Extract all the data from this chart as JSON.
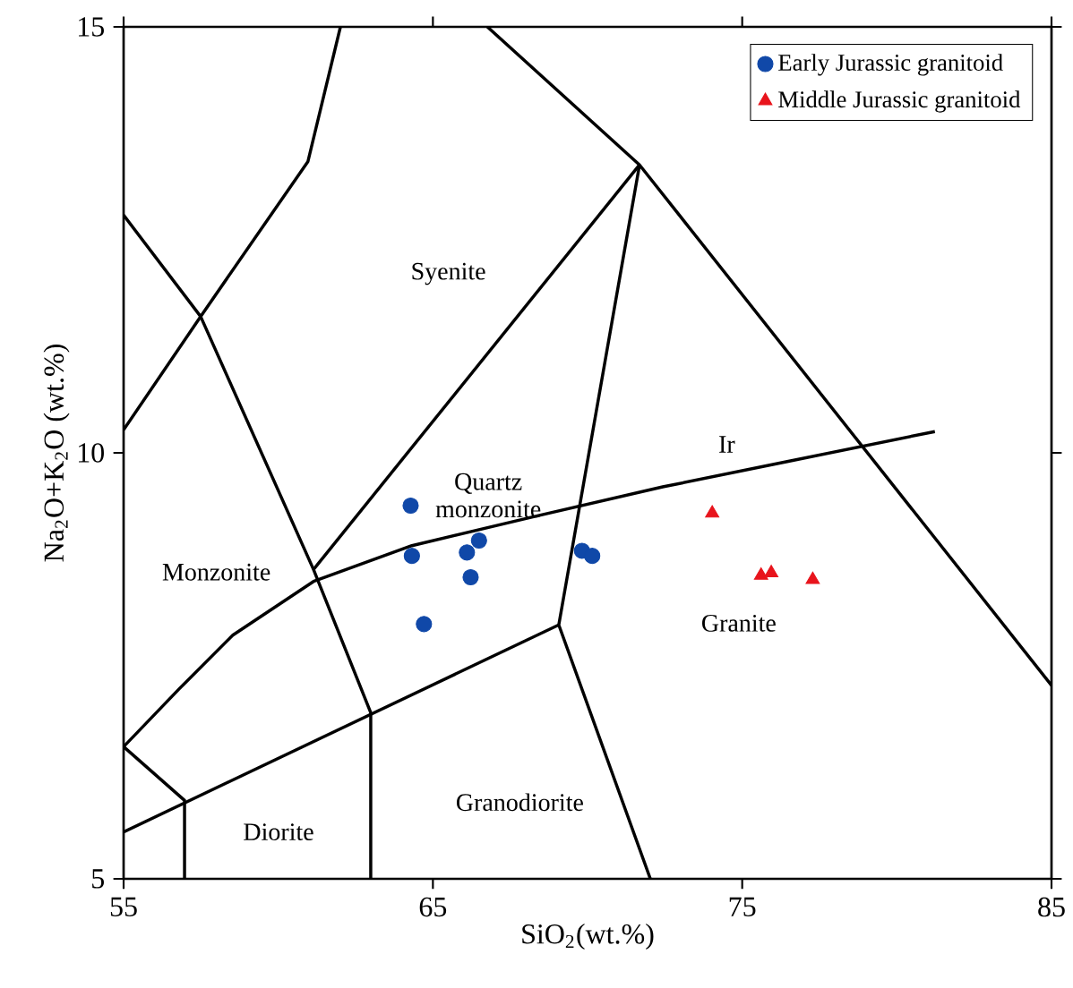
{
  "chart_data": {
    "type": "scatter",
    "xlabel": "SiO$_{2}$(wt.%)",
    "ylabel": "Na$_{2}$O+K$_{2}$O (wt.%)",
    "xlim": [
      55,
      85
    ],
    "ylim": [
      5,
      15
    ],
    "xticks": [
      55,
      65,
      75,
      85
    ],
    "yticks": [
      5,
      10,
      15
    ],
    "legend": "top right",
    "grid": false,
    "series": [
      {
        "name": "Early Jurassic granitoid",
        "marker": "circle",
        "color": "#1048a8",
        "x": [
          64.28,
          64.32,
          66.49,
          66.1,
          66.22,
          64.71,
          69.82,
          70.15
        ],
        "values": [
          9.38,
          8.79,
          8.97,
          8.83,
          8.54,
          7.99,
          8.85,
          8.79
        ]
      },
      {
        "name": "Middle Jurassic granitoid",
        "marker": "triangle",
        "color": "#e8141c",
        "x": [
          74.03,
          75.61,
          75.94,
          77.28
        ],
        "values": [
          9.29,
          8.56,
          8.59,
          8.51
        ]
      },
      {
        "type": "line",
        "color": "#000000",
        "x": [
          55,
          57.49,
          61.14,
          62.99,
          62.99
        ],
        "values": [
          12.79,
          11.6,
          8.63,
          6.95,
          5
        ]
      },
      {
        "type": "line",
        "color": "#000000",
        "x": [
          55,
          57.49,
          60.96,
          62.01
        ],
        "values": [
          10.27,
          11.6,
          13.42,
          15
        ]
      },
      {
        "type": "line",
        "color": "#000000",
        "x": [
          61.14,
          71.68
        ],
        "values": [
          8.63,
          13.38
        ]
      },
      {
        "type": "line",
        "color": "#000000",
        "x": [
          66.76,
          71.68,
          85
        ],
        "values": [
          15,
          13.38,
          7.27
        ]
      },
      {
        "type": "line",
        "color": "#000000",
        "x": [
          71.68,
          69.07,
          72.03
        ],
        "values": [
          13.38,
          7.98,
          5
        ]
      },
      {
        "type": "line",
        "color": "#000000",
        "x": [
          55,
          56.8,
          58.53,
          61.14,
          64.32,
          68.38,
          72.43,
          76.49,
          81.23
        ],
        "values": [
          6.55,
          7.23,
          7.86,
          8.49,
          8.91,
          9.26,
          9.6,
          9.9,
          10.25
        ]
      },
      {
        "type": "line",
        "color": "#000000",
        "x": [
          55,
          69.07
        ],
        "values": [
          5.55,
          7.98
        ]
      },
      {
        "type": "line",
        "color": "#000000",
        "x": [
          55,
          56.97,
          56.97
        ],
        "values": [
          6.55,
          5.92,
          5
        ]
      }
    ],
    "annotations": [
      "Syenite",
      "Quartz monzonite",
      "Monzonite",
      "Granite",
      "Granodiorite",
      "Diorite",
      "Ir"
    ]
  }
}
